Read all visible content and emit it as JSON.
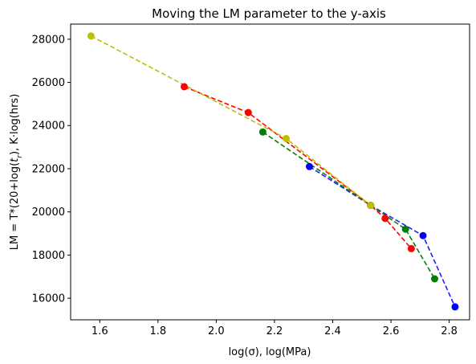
{
  "chart_data": {
    "type": "line",
    "title": "Moving the LM parameter to the y-axis",
    "xlabel": "log(σ), log(MPa)",
    "ylabel_parts": {
      "main": "LM = T*(20+log(",
      "t": "t",
      "sub": "r",
      "rest": "), K·log(hrs)"
    },
    "xlim": [
      1.5,
      2.87
    ],
    "ylim": [
      15000,
      28700
    ],
    "xticks": [
      1.6,
      1.8,
      2.0,
      2.2,
      2.4,
      2.6,
      2.8
    ],
    "xtick_labels": [
      "1.6",
      "1.8",
      "2.0",
      "2.2",
      "2.4",
      "2.6",
      "2.8"
    ],
    "yticks": [
      16000,
      18000,
      20000,
      22000,
      24000,
      26000,
      28000
    ],
    "ytick_labels": [
      "16000",
      "18000",
      "20000",
      "22000",
      "24000",
      "26000",
      "28000"
    ],
    "grid": false,
    "series": [
      {
        "color": "#1f1fff",
        "dotColor": "#0000ff",
        "x": [
          2.32,
          2.53,
          2.71,
          2.82
        ],
        "y": [
          22100,
          20300,
          18900,
          15600
        ]
      },
      {
        "color": "#008000",
        "dotColor": "#008000",
        "x": [
          2.16,
          2.53,
          2.65,
          2.75
        ],
        "y": [
          23700,
          20300,
          19200,
          16900
        ]
      },
      {
        "color": "#ff0000",
        "dotColor": "#ff0000",
        "x": [
          1.89,
          2.11,
          2.53,
          2.58,
          2.67
        ],
        "y": [
          25800,
          24600,
          20300,
          19700,
          18300
        ]
      },
      {
        "color": "#bfbf00",
        "dotColor": "#bfbf00",
        "x": [
          1.57,
          2.24,
          2.53
        ],
        "y": [
          28150,
          23400,
          20300
        ]
      }
    ]
  }
}
